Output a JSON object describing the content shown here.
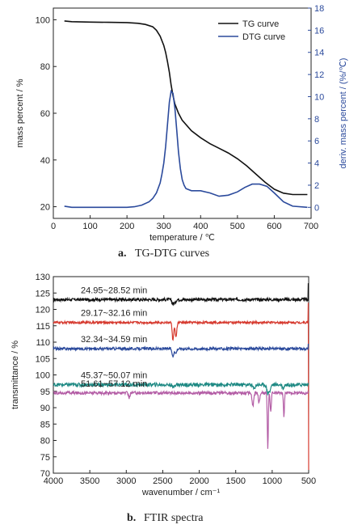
{
  "captions": {
    "a_letter": "a.",
    "a_text": "TG-DTG curves",
    "b_letter": "b.",
    "b_text": "FTIR spectra"
  },
  "chart_data": [
    {
      "type": "line",
      "xlabel": "temperature / ℃",
      "ylabel": "mass percent / %",
      "y2label": "deriv. mass percent / (%/℃)",
      "xlim": [
        0,
        700
      ],
      "ylim": [
        15,
        105
      ],
      "y2lim": [
        -1,
        18
      ],
      "xticks": [
        0,
        100,
        200,
        300,
        400,
        500,
        600,
        700
      ],
      "yticks": [
        20,
        40,
        60,
        80,
        100
      ],
      "y2ticks": [
        0,
        2,
        4,
        6,
        8,
        10,
        12,
        14,
        16,
        18
      ],
      "legend_position": "top-right",
      "grid": false,
      "series": [
        {
          "name": "TG curve",
          "axis": "left",
          "color": "#111111",
          "x": [
            30,
            50,
            100,
            150,
            200,
            230,
            250,
            270,
            280,
            290,
            300,
            305,
            310,
            315,
            320,
            325,
            330,
            340,
            350,
            375,
            400,
            425,
            450,
            475,
            500,
            525,
            550,
            575,
            600,
            625,
            650,
            690
          ],
          "y": [
            99.5,
            99.2,
            99.0,
            98.9,
            98.8,
            98.5,
            98.0,
            97.0,
            95.5,
            93.0,
            89.0,
            86.0,
            82.0,
            77.5,
            72.0,
            67.5,
            64.0,
            60.0,
            57.0,
            52.5,
            49.5,
            47.0,
            45.0,
            43.0,
            40.5,
            37.5,
            34.0,
            30.5,
            27.5,
            25.8,
            25.2,
            25.2
          ]
        },
        {
          "name": "DTG curve",
          "axis": "right",
          "color": "#2b4a9c",
          "x": [
            30,
            50,
            100,
            150,
            200,
            220,
            240,
            260,
            270,
            280,
            290,
            295,
            300,
            305,
            310,
            315,
            320,
            325,
            330,
            335,
            340,
            345,
            350,
            355,
            360,
            375,
            400,
            425,
            450,
            475,
            500,
            520,
            540,
            560,
            580,
            600,
            625,
            650,
            690
          ],
          "y": [
            0.1,
            0.0,
            0.0,
            0.0,
            0.0,
            0.05,
            0.2,
            0.5,
            0.8,
            1.3,
            2.2,
            3.0,
            4.0,
            5.5,
            7.5,
            9.5,
            10.5,
            10.3,
            9.0,
            7.0,
            5.0,
            3.5,
            2.5,
            2.0,
            1.7,
            1.5,
            1.5,
            1.3,
            1.0,
            1.1,
            1.4,
            1.8,
            2.1,
            2.1,
            1.9,
            1.3,
            0.5,
            0.1,
            0.0
          ]
        }
      ]
    },
    {
      "type": "line",
      "xlabel": "wavenumber / cm⁻¹",
      "ylabel": "transmittance / %",
      "xlim": [
        4000,
        500
      ],
      "ylim": [
        70,
        130
      ],
      "xticks": [
        4000,
        3500,
        3000,
        2500,
        2000,
        1500,
        1000,
        500
      ],
      "yticks": [
        70,
        75,
        80,
        85,
        90,
        95,
        100,
        105,
        110,
        115,
        120,
        125,
        130
      ],
      "grid": false,
      "series": [
        {
          "name": "24.95~28.52 min",
          "color": "#111111",
          "base": 123.0,
          "noise": 0.45,
          "dips": [
            [
              2360,
              1.4,
              18
            ],
            [
              2330,
              1.0,
              14
            ]
          ],
          "end_jump": [
            [
              505,
              5.0
            ]
          ]
        },
        {
          "name": "29.17~32.16 min",
          "color": "#d63a2f",
          "base": 116.0,
          "noise": 0.35,
          "dips": [
            [
              2360,
              5.5,
              14
            ],
            [
              2320,
              4.5,
              16
            ]
          ],
          "end_jump": [
            [
              505,
              6.0
            ],
            [
              500,
              -45.0
            ]
          ]
        },
        {
          "name": "32.34~34.59 min",
          "color": "#2b4a9c",
          "base": 108.0,
          "noise": 0.4,
          "dips": [
            [
              2360,
              2.5,
              16
            ],
            [
              2320,
              1.5,
              14
            ]
          ],
          "end_jump": [
            [
              505,
              1.5
            ]
          ]
        },
        {
          "name": "45.37~50.07 min",
          "color": "#1f8a84",
          "base": 97.0,
          "noise": 0.55,
          "dips": [
            [
              1250,
              1.2,
              20
            ],
            [
              1060,
              2.5,
              20
            ],
            [
              1030,
              1.8,
              14
            ],
            [
              850,
              1.2,
              14
            ],
            [
              2360,
              1.0,
              14
            ]
          ],
          "end_jump": [
            [
              505,
              0.0
            ]
          ]
        },
        {
          "name": "51.61~57.12 min",
          "color": "#b45ea6",
          "base": 94.5,
          "noise": 0.45,
          "dips": [
            [
              1265,
              4.0,
              16
            ],
            [
              1180,
              3.0,
              14
            ],
            [
              1060,
              17.0,
              10
            ],
            [
              1020,
              6.0,
              10
            ],
            [
              840,
              7.0,
              10
            ],
            [
              2960,
              1.5,
              14
            ]
          ],
          "end_jump": [
            [
              505,
              0.0
            ]
          ]
        }
      ]
    }
  ]
}
